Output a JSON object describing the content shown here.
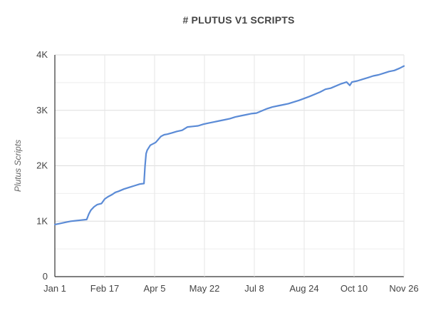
{
  "chart_data": {
    "type": "line",
    "title": "# PLUTUS V1 SCRIPTS",
    "xlabel": "",
    "ylabel": "Plutus Scripts",
    "x_ticks": [
      "Jan 1",
      "Feb 17",
      "Apr 5",
      "May 22",
      "Jul 8",
      "Aug 24",
      "Oct 10",
      "Nov 26"
    ],
    "y_ticks": [
      "0",
      "1K",
      "2K",
      "3K",
      "4K"
    ],
    "ylim": [
      0,
      4000
    ],
    "xlim_days": [
      0,
      329
    ],
    "grid": true,
    "color": "#5b8bd6",
    "series": [
      {
        "name": "",
        "x": [
          0,
          5,
          10,
          15,
          20,
          25,
          30,
          32,
          34,
          37,
          40,
          44,
          47,
          50,
          54,
          57,
          60,
          65,
          70,
          75,
          80,
          84,
          85,
          86,
          87,
          90,
          95,
          100,
          103,
          106,
          110,
          115,
          120,
          125,
          130,
          135,
          140,
          145,
          150,
          155,
          160,
          165,
          170,
          175,
          180,
          185,
          190,
          200,
          205,
          210,
          215,
          220,
          230,
          240,
          250,
          255,
          260,
          270,
          275,
          278,
          280,
          285,
          290,
          295,
          300,
          305,
          310,
          315,
          320,
          325,
          329
        ],
        "y": [
          940,
          960,
          980,
          1000,
          1010,
          1020,
          1030,
          1130,
          1200,
          1260,
          1300,
          1320,
          1400,
          1440,
          1480,
          1520,
          1540,
          1580,
          1610,
          1640,
          1670,
          1680,
          2000,
          2220,
          2280,
          2370,
          2420,
          2530,
          2560,
          2570,
          2590,
          2620,
          2640,
          2700,
          2710,
          2720,
          2750,
          2770,
          2790,
          2810,
          2830,
          2850,
          2880,
          2900,
          2920,
          2940,
          2950,
          3030,
          3060,
          3080,
          3100,
          3120,
          3180,
          3250,
          3330,
          3380,
          3400,
          3480,
          3510,
          3450,
          3510,
          3530,
          3560,
          3590,
          3620,
          3640,
          3670,
          3700,
          3720,
          3760,
          3800
        ]
      }
    ]
  }
}
